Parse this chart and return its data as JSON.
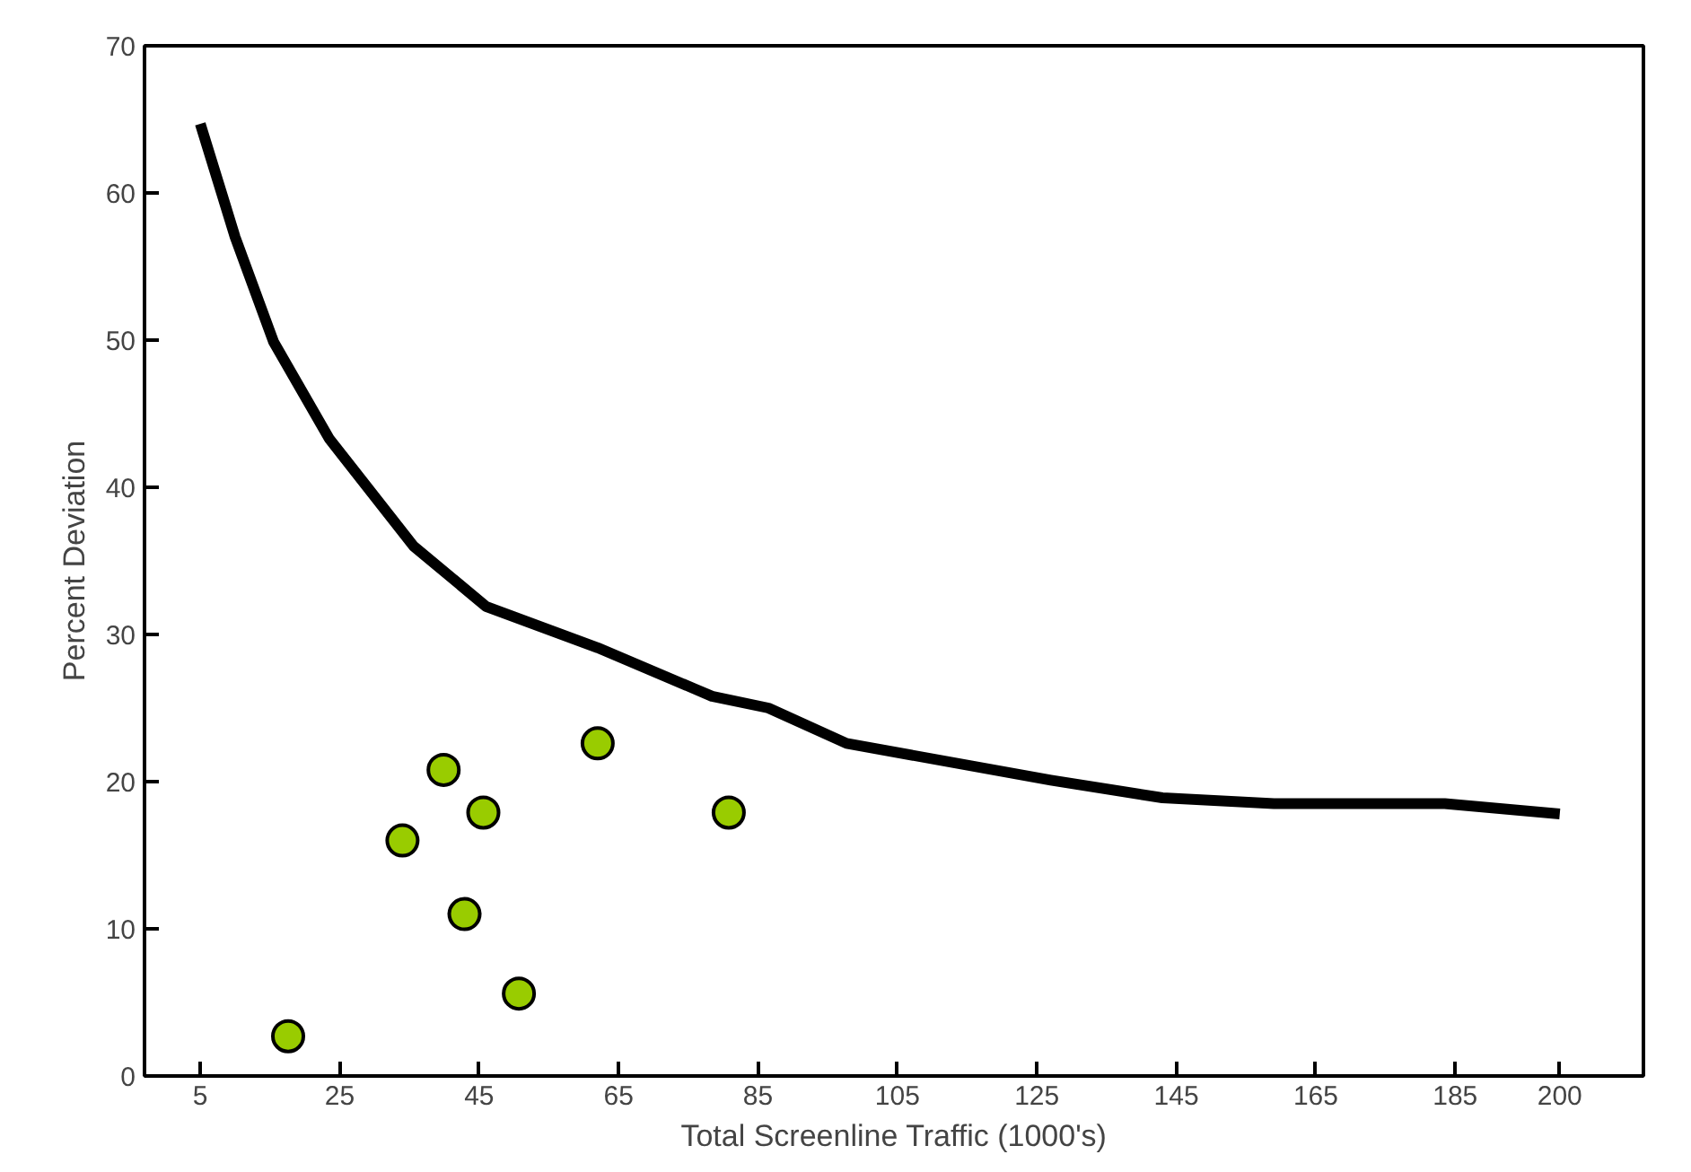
{
  "chart_data": {
    "type": "line",
    "xlabel": "Total Screenline Traffic (1000's)",
    "ylabel": "Percent Deviation",
    "xlim": [
      -3,
      212
    ],
    "ylim": [
      0,
      70
    ],
    "xticks": [
      5,
      25,
      45,
      65,
      85,
      105,
      125,
      145,
      165,
      185,
      200
    ],
    "yticks": [
      0,
      10,
      20,
      30,
      40,
      50,
      60,
      70
    ],
    "grid": false,
    "series": [
      {
        "color": "#000000",
        "x": [
          5,
          10,
          15.5,
          23.5,
          35.6,
          46,
          62,
          78.4,
          86.5,
          97.7,
          127,
          143,
          159,
          183.5,
          200
        ],
        "values": [
          64.7,
          57,
          49.9,
          43.3,
          36,
          31.9,
          29.1,
          25.8,
          25,
          22.6,
          20.1,
          18.9,
          18.5,
          18.5,
          17.8
        ]
      },
      {
        "type": "scatter",
        "marker": "circle",
        "color": "#99cc00",
        "x": [
          17.6,
          34,
          39.9,
          45.6,
          42.9,
          50.7,
          62,
          80.8
        ],
        "values": [
          2.7,
          16.0,
          20.8,
          17.9,
          11.0,
          5.6,
          22.6,
          17.9
        ]
      }
    ]
  }
}
